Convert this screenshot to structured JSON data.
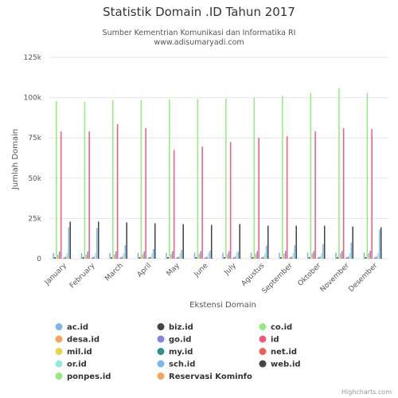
{
  "chart_data": {
    "type": "bar",
    "title": "Statistik Domain .ID Tahun 2017",
    "subtitle_line1": "Sumber Kementrian Komunikasi dan Informatika RI",
    "subtitle_line2": "www.adisumaryadi.com",
    "xlabel": "Ekstensi Domain",
    "ylabel": "Jumlah Domain",
    "ylim": [
      0,
      125000
    ],
    "yticks": [
      0,
      25000,
      50000,
      75000,
      100000,
      125000
    ],
    "ytick_labels": [
      "0",
      "25k",
      "50k",
      "75k",
      "100k",
      "125k"
    ],
    "grid": true,
    "legend_position": "bottom",
    "categories": [
      "January",
      "February",
      "March",
      "April",
      "May",
      "June",
      "July",
      "Agustus",
      "September",
      "Oktober",
      "November",
      "Desember"
    ],
    "series": [
      {
        "name": "ac.id",
        "color": "#7cb5ec",
        "values": [
          3500,
          3500,
          3600,
          3600,
          3600,
          3700,
          3700,
          3700,
          3800,
          3800,
          3800,
          3900
        ]
      },
      {
        "name": "biz.id",
        "color": "#434348",
        "values": [
          1000,
          1000,
          1000,
          1000,
          1000,
          1000,
          1000,
          1000,
          1000,
          1000,
          1000,
          1000
        ]
      },
      {
        "name": "co.id",
        "color": "#90ed7d",
        "values": [
          98000,
          97500,
          98500,
          98500,
          99000,
          99000,
          99500,
          100000,
          101000,
          103000,
          106000,
          103000
        ]
      },
      {
        "name": "desa.id",
        "color": "#f7a35c",
        "values": [
          2500,
          2600,
          2700,
          2800,
          2900,
          3000,
          3000,
          3100,
          3200,
          3300,
          3400,
          3500
        ]
      },
      {
        "name": "go.id",
        "color": "#8085e9",
        "values": [
          4500,
          4500,
          4600,
          4600,
          4600,
          4700,
          4700,
          4700,
          4800,
          4800,
          4800,
          4900
        ]
      },
      {
        "name": "id",
        "color": "#f15c80",
        "values": [
          79000,
          79000,
          83500,
          81000,
          67500,
          69500,
          72500,
          75000,
          76000,
          79000,
          81000,
          80500
        ]
      },
      {
        "name": "mil.id",
        "color": "#e4d354",
        "values": [
          300,
          300,
          300,
          300,
          300,
          300,
          300,
          300,
          300,
          300,
          300,
          300
        ]
      },
      {
        "name": "my.id",
        "color": "#2b908f",
        "values": [
          800,
          800,
          800,
          800,
          800,
          800,
          800,
          800,
          800,
          800,
          800,
          800
        ]
      },
      {
        "name": "net.id",
        "color": "#f45b5b",
        "values": [
          1200,
          1200,
          1200,
          1200,
          1200,
          1200,
          1200,
          1200,
          1200,
          1200,
          1200,
          1200
        ]
      },
      {
        "name": "or.id",
        "color": "#91e8e1",
        "values": [
          3500,
          3500,
          3500,
          3500,
          3500,
          3500,
          3500,
          3500,
          3500,
          3500,
          3500,
          3500
        ]
      },
      {
        "name": "sch.id",
        "color": "#7cb5ec",
        "values": [
          19500,
          19000,
          8500,
          6000,
          5500,
          5000,
          4500,
          8000,
          8500,
          9000,
          10000,
          18000
        ]
      },
      {
        "name": "web.id",
        "color": "#434348",
        "values": [
          23000,
          23000,
          22500,
          22000,
          21500,
          21000,
          21500,
          20500,
          20500,
          20500,
          20000,
          19500
        ]
      },
      {
        "name": "ponpes.id",
        "color": "#90ed7d",
        "values": [
          300,
          300,
          300,
          300,
          300,
          300,
          300,
          300,
          300,
          300,
          300,
          300
        ]
      },
      {
        "name": "Reservasi Kominfo",
        "color": "#f7a35c",
        "values": [
          0,
          0,
          0,
          0,
          0,
          0,
          0,
          0,
          0,
          0,
          0,
          0
        ]
      }
    ]
  },
  "credits": "Highcharts.com"
}
